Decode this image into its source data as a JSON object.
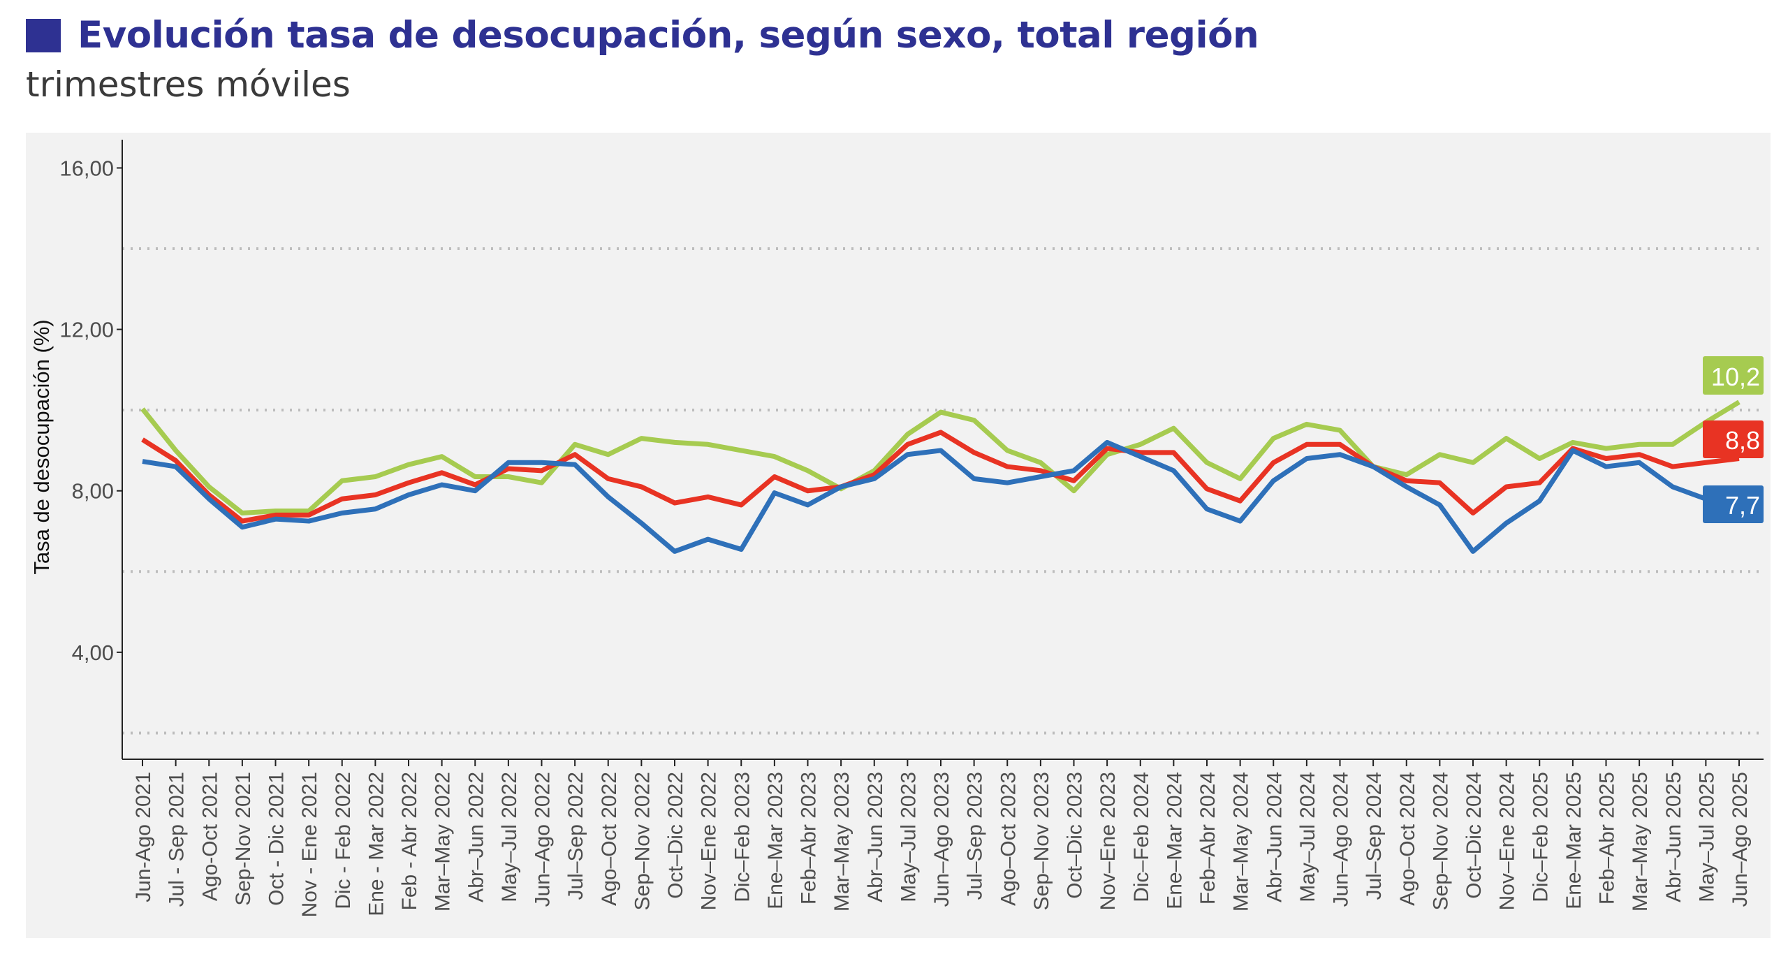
{
  "header": {
    "title": "Evolución tasa de desocupación, según sexo, total región",
    "subtitle": "trimestres móviles",
    "accent_color": "#2e3192"
  },
  "chart_data": {
    "type": "line",
    "title": "Evolución tasa de desocupación, según sexo, total región",
    "subtitle": "trimestres móviles",
    "xlabel": "",
    "ylabel": "Tasa de desocupación (%)",
    "ylim": [
      1.35,
      16.7
    ],
    "yticks": [
      4,
      8,
      12,
      16
    ],
    "ytick_labels": [
      "4,00",
      "8,00",
      "12,00",
      "16,00"
    ],
    "gridlines": [
      2,
      6,
      10,
      14
    ],
    "grid": true,
    "legend": "none (end-of-line value labels)",
    "categories": [
      "Jun-Ago 2021",
      "Jul - Sep 2021",
      "Ago-Oct 2021",
      "Sep-Nov 2021",
      "Oct - Dic 2021",
      "Nov - Ene 2021",
      "Dic - Feb 2022",
      "Ene - Mar 2022",
      "Feb - Abr 2022",
      "Mar–May 2022",
      "Abr–Jun 2022",
      "May–Jul 2022",
      "Jun–Ago 2022",
      "Jul–Sep 2022",
      "Ago–Oct 2022",
      "Sep–Nov 2022",
      "Oct–Dic 2022",
      "Nov–Ene 2022",
      "Dic–Feb 2023",
      "Ene–Mar 2023",
      "Feb–Abr 2023",
      "Mar–May 2023",
      "Abr–Jun 2023",
      "May–Jul 2023",
      "Jun–Ago 2023",
      "Jul–Sep 2023",
      "Ago–Oct 2023",
      "Sep–Nov 2023",
      "Oct–Dic 2023",
      "Nov–Ene 2023",
      "Dic–Feb 2024",
      "Ene–Mar 2024",
      "Feb–Abr 2024",
      "Mar–May 2024",
      "Abr–Jun 2024",
      "May–Jul 2024",
      "Jun–Ago 2024",
      "Jul–Sep 2024",
      "Ago–Oct 2024",
      "Sep–Nov 2024",
      "Oct–Dic 2024",
      "Nov–Ene 2024",
      "Dic–Feb 2025",
      "Ene–Mar 2025",
      "Feb–Abr 2025",
      "Mar–May 2025",
      "Abr–Jun 2025",
      "May–Jul 2025",
      "Jun–Ago 2025"
    ],
    "series": [
      {
        "key": "green",
        "color": "#a6cb50",
        "end_label": "10,2",
        "values": [
          10.03,
          9.0,
          8.1,
          7.45,
          7.5,
          7.5,
          8.25,
          8.35,
          8.65,
          8.85,
          8.35,
          8.35,
          8.2,
          9.15,
          8.9,
          9.3,
          9.2,
          9.15,
          9.0,
          8.85,
          8.5,
          8.05,
          8.5,
          9.4,
          9.95,
          9.75,
          9.0,
          8.7,
          8.0,
          8.9,
          9.15,
          9.55,
          8.7,
          8.3,
          9.3,
          9.65,
          9.5,
          8.6,
          8.4,
          8.9,
          8.7,
          9.3,
          8.8,
          9.2,
          9.05,
          9.15,
          9.15,
          9.7,
          10.2
        ]
      },
      {
        "key": "red",
        "color": "#e83323",
        "end_label": "8,8",
        "values": [
          9.27,
          8.75,
          7.9,
          7.25,
          7.4,
          7.4,
          7.8,
          7.9,
          8.2,
          8.45,
          8.15,
          8.55,
          8.5,
          8.9,
          8.3,
          8.1,
          7.7,
          7.85,
          7.65,
          8.35,
          8.0,
          8.1,
          8.4,
          9.15,
          9.45,
          8.95,
          8.6,
          8.5,
          8.25,
          9.05,
          8.95,
          8.95,
          8.05,
          7.75,
          8.7,
          9.15,
          9.15,
          8.6,
          8.25,
          8.2,
          7.45,
          8.1,
          8.2,
          9.05,
          8.8,
          8.9,
          8.6,
          8.7,
          8.8
        ]
      },
      {
        "key": "blue",
        "color": "#2e70b9",
        "end_label": "7,7",
        "values": [
          8.73,
          8.6,
          7.8,
          7.1,
          7.3,
          7.25,
          7.45,
          7.55,
          7.9,
          8.15,
          8.0,
          8.7,
          8.7,
          8.65,
          7.85,
          7.2,
          6.5,
          6.8,
          6.55,
          7.95,
          7.65,
          8.1,
          8.3,
          8.9,
          9.0,
          8.3,
          8.2,
          8.35,
          8.5,
          9.2,
          8.85,
          8.5,
          7.55,
          7.25,
          8.25,
          8.8,
          8.9,
          8.6,
          8.1,
          7.65,
          6.5,
          7.2,
          7.75,
          9.0,
          8.6,
          8.7,
          8.1,
          7.8,
          7.7
        ]
      }
    ]
  }
}
